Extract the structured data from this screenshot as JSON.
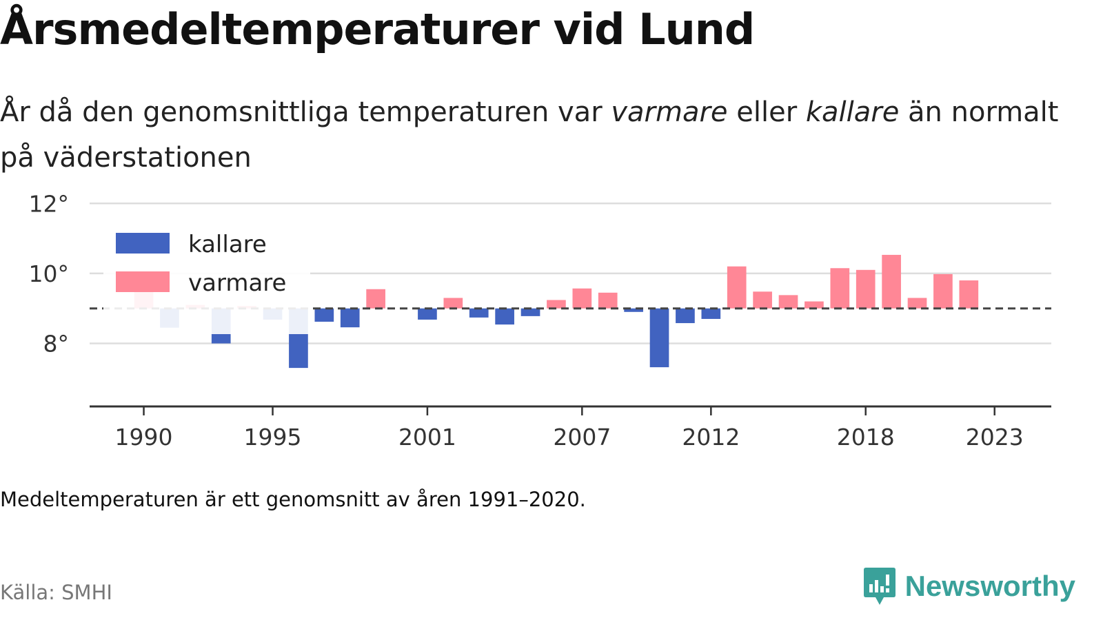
{
  "title": "Årsmedeltemperaturer vid Lund",
  "subtitle": {
    "part1": "År då den genomsnittliga temperaturen var ",
    "warm_word": "varmare",
    "part2": " eller ",
    "cold_word": "kallare",
    "part3": " än normalt på väderstationen"
  },
  "note": "Medeltemperaturen är ett genomsnitt av åren 1991–2020.",
  "source": "Källa: SMHI",
  "brand": "Newsworthy",
  "colors": {
    "warm": "#ff8796",
    "cold": "#4163c0",
    "grid": "#dddddd",
    "axis": "#333333",
    "reference_line": "#444444"
  },
  "chart_data": {
    "type": "bar",
    "baseline": 9.0,
    "ylim": [
      6.2,
      12.3
    ],
    "y_ticks": [
      {
        "value": 8,
        "label": "8°"
      },
      {
        "value": 10,
        "label": "10°"
      },
      {
        "value": 12,
        "label": "12°"
      }
    ],
    "x_ticks": [
      1990,
      1995,
      2001,
      2007,
      2012,
      2018,
      2023
    ],
    "x_range": [
      1987.9,
      2025.2
    ],
    "legend": [
      {
        "key": "cold",
        "label": "kallare"
      },
      {
        "key": "warm",
        "label": "varmare"
      }
    ],
    "legend_placement": "top-left",
    "grid": true,
    "x": [
      1990,
      1991,
      1992,
      1993,
      1994,
      1995,
      1996,
      1997,
      1998,
      1999,
      2000,
      2001,
      2002,
      2003,
      2004,
      2005,
      2006,
      2007,
      2008,
      2009,
      2010,
      2011,
      2012,
      2013,
      2014,
      2015,
      2016,
      2017,
      2018,
      2019,
      2020,
      2021,
      2022,
      2023
    ],
    "values": [
      9.6,
      8.45,
      9.1,
      8.0,
      9.07,
      8.68,
      7.3,
      8.62,
      8.46,
      9.55,
      null,
      8.68,
      9.3,
      8.74,
      8.54,
      8.78,
      9.24,
      9.57,
      9.45,
      8.9,
      7.32,
      8.58,
      8.7,
      10.2,
      9.48,
      9.38,
      9.2,
      10.15,
      10.1,
      10.53,
      9.3,
      9.98,
      9.8,
      null
    ]
  }
}
